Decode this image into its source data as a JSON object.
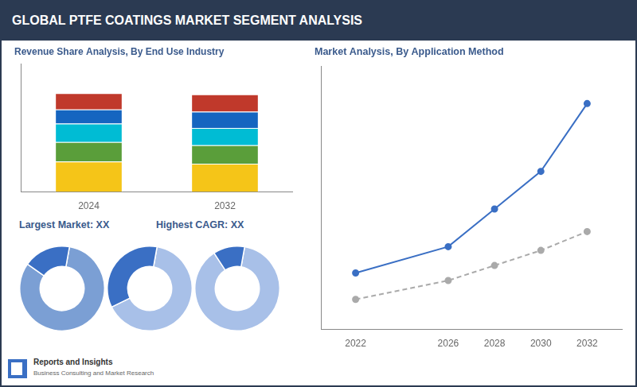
{
  "title": "GLOBAL PTFE COATINGS MARKET SEGMENT ANALYSIS",
  "annotations": [
    "Reports and Insights",
    "Business Consulting and Market Research"
  ],
  "chart_data": [
    {
      "type": "bar",
      "title": "Revenue Share Analysis, By End Use Industry",
      "categories": [
        "2024",
        "2032"
      ],
      "series": [
        {
          "color": "#f5c518",
          "values": [
            0.28,
            0.26
          ]
        },
        {
          "color": "#5a9e3a",
          "values": [
            0.18,
            0.17
          ]
        },
        {
          "color": "#00bcd4",
          "values": [
            0.17,
            0.16
          ]
        },
        {
          "color": "#1565c0",
          "values": [
            0.13,
            0.15
          ]
        },
        {
          "color": "#c0392b",
          "values": [
            0.15,
            0.16
          ]
        }
      ],
      "stacked": true,
      "ylim": [
        0,
        1.18
      ],
      "yticks": [],
      "tick_labels": "x",
      "grid": false
    },
    {
      "type": "doughnut",
      "title": "Largest Market: XX",
      "values": [
        82,
        18
      ],
      "colors": [
        "#7b9fd4",
        "#3a6fc4"
      ]
    },
    {
      "type": "doughnut",
      "title": "Highest CAGR: XX",
      "values": [
        65,
        35
      ],
      "colors": [
        "#a8c0e8",
        "#3a6fc4"
      ]
    },
    {
      "type": "doughnut",
      "values": [
        88,
        12
      ],
      "colors": [
        "#a8c0e8",
        "#3a6fc4"
      ]
    },
    {
      "type": "line",
      "title": "Market Analysis, By Application Method",
      "x": [
        2022,
        2026,
        2028,
        2030,
        2032
      ],
      "series": [
        {
          "color": "#3a6fc4",
          "line_style": "solid",
          "marker": "circle",
          "values": [
            1.5,
            2.2,
            3.2,
            4.2,
            6.0
          ]
        },
        {
          "color": "#aaaaaa",
          "line_style": "dashed",
          "marker": "circle",
          "values": [
            0.8,
            1.3,
            1.7,
            2.1,
            2.6
          ]
        }
      ],
      "xlim": [
        2020.5,
        2033.5
      ],
      "xticks": [
        2022,
        2026,
        2028,
        2030,
        2032
      ],
      "ylim": [
        0,
        7
      ],
      "yticks": [],
      "tick_labels": "x",
      "grid": false
    }
  ]
}
